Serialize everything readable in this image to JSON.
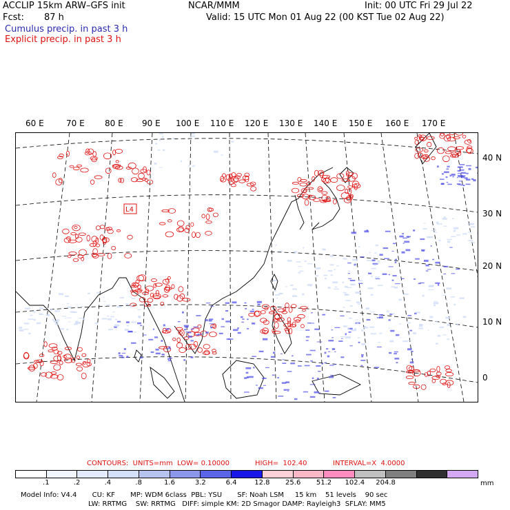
{
  "header": {
    "model": "ACCLIP 15km ARW–GFS init",
    "org": "NCAR/MMM",
    "init": "Init: 00 UTC Fri 29 Jul 22",
    "fcst_label": "Fcst:",
    "fcst_value": "87 h",
    "valid": "Valid: 15 UTC Mon 01 Aug 22 (00 KST Tue 02 Aug 22)",
    "cumulus": "Cumulus precip. in past 3 h",
    "explicit": "Explicit precip. in past 3 h"
  },
  "map": {
    "lon_labels": [
      "60 E",
      "70 E",
      "80 E",
      "90 E",
      "100 E",
      "110 E",
      "120 E",
      "130 E",
      "140 E",
      "150 E",
      "160 E",
      "170 E"
    ],
    "lat_labels": [
      "40 N",
      "30 N",
      "20 N",
      "10 N",
      "0"
    ],
    "low_marker": "L4",
    "colors": {
      "coast": "#000000",
      "grid": "#000000",
      "cumulus": "#2020e0",
      "explicit": "#e01010"
    }
  },
  "contours": {
    "units_label": "CONTOURS:  UNITS=mm  LOW= 0.10000",
    "high_label": "HIGH=  102.40",
    "interval_label": "INTERVAL=X  4.0000"
  },
  "legend": {
    "colors": [
      "#ffffff",
      "#f2f6ff",
      "#e4ecfb",
      "#d4dff8",
      "#b8c4f0",
      "#8c96ea",
      "#5a64e6",
      "#1818e8",
      "#ffd2d8",
      "#ffb8c8",
      "#ff8cc0",
      "#c0c0c0",
      "#808080",
      "#303030",
      "#d4a8f4"
    ],
    "ticks": [
      ".1",
      ".2",
      ".4",
      ".8",
      "1.6",
      "3.2",
      "6.4",
      "12.8",
      "25.6",
      "51.2",
      "102.4",
      "204.8"
    ],
    "unit": "mm"
  },
  "footer": {
    "line1": "Model Info: V4.4       CU: KF       MP: WDM 6class  PBL: YSU       SF: Noah LSM     15 km    51 levels    90 sec",
    "line2": "LW: RRTMG    SW: RRTMG   DIFF: simple KM: 2D Smagor DAMP: Rayleigh3  SFLAY: MM5"
  }
}
